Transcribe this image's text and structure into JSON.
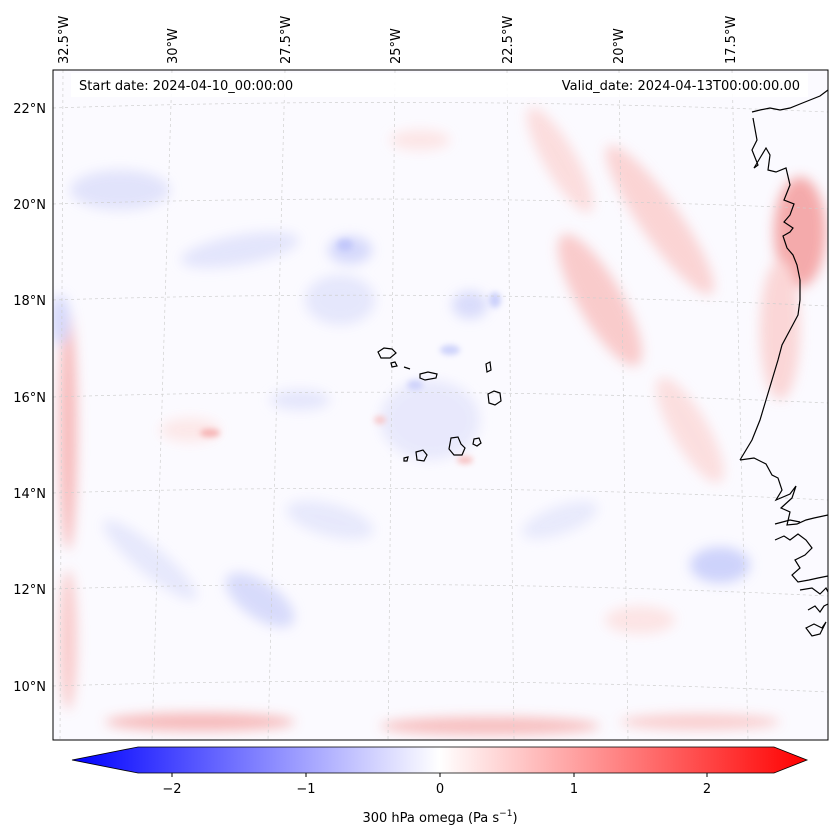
{
  "map": {
    "start_date_text": "Start date: 2024-04-10_00:00:00",
    "valid_date_text": "Valid_date: 2024-04-13T00:00:00.00",
    "lon_labels": [
      "32.5°W",
      "30°W",
      "27.5°W",
      "25°W",
      "22.5°W",
      "20°W",
      "17.5°W"
    ],
    "lat_labels": [
      "22°N",
      "20°N",
      "18°N",
      "16°N",
      "14°N",
      "12°N",
      "10°N"
    ],
    "gridlines": "on (dashed, light gray)",
    "projection": "Lambert conformal",
    "features": [
      "Cabo Verde islands",
      "West African coastline (Mauritania, Senegal, Gambia, Guinea-Bissau)"
    ]
  },
  "colorbar": {
    "cmap": "bwr",
    "colors": {
      "min": "#0000ff",
      "mid": "#ffffff",
      "max": "#ff0000"
    },
    "range": [
      -2.6,
      2.6
    ],
    "extend": "both",
    "ticks": [
      "−2",
      "−1",
      "0",
      "1",
      "2"
    ],
    "label": "300 hPa omega (Pa s",
    "label_sup": "−1",
    "label_close": ")"
  }
}
